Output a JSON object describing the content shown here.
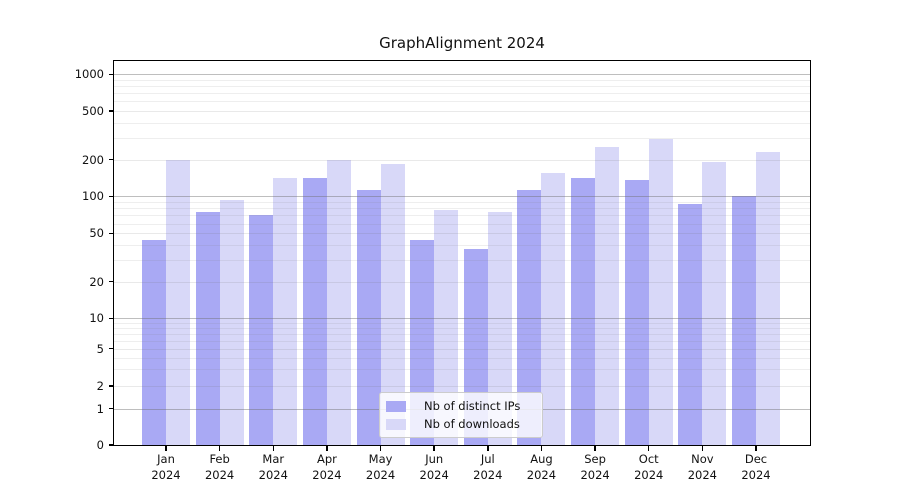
{
  "chart_data": {
    "type": "bar",
    "title": "GraphAlignment 2024",
    "categories": [
      "Jan",
      "Feb",
      "Mar",
      "Apr",
      "May",
      "Jun",
      "Jul",
      "Aug",
      "Sep",
      "Oct",
      "Nov",
      "Dec"
    ],
    "x_tick_second_line": "2024",
    "series": [
      {
        "name": "Nb of distinct IPs",
        "color": "#a9a9f4",
        "values": [
          44,
          75,
          70,
          140,
          112,
          44,
          37,
          112,
          140,
          136,
          86,
          100
        ]
      },
      {
        "name": "Nb of downloads",
        "color": "#d8d8f8",
        "values": [
          197,
          93,
          140,
          198,
          183,
          77,
          75,
          154,
          254,
          295,
          190,
          230
        ]
      }
    ],
    "yscale": "symlog",
    "ylim": [
      0,
      1000
    ],
    "ytick_labels": [
      "1000",
      "500",
      "200",
      "100",
      "50",
      "20",
      "10",
      "5",
      "2",
      "1",
      "0"
    ],
    "yticks": [
      1000,
      500,
      200,
      100,
      50,
      20,
      10,
      5,
      2,
      1,
      0
    ],
    "grid": true,
    "legend_position": "lower center"
  }
}
